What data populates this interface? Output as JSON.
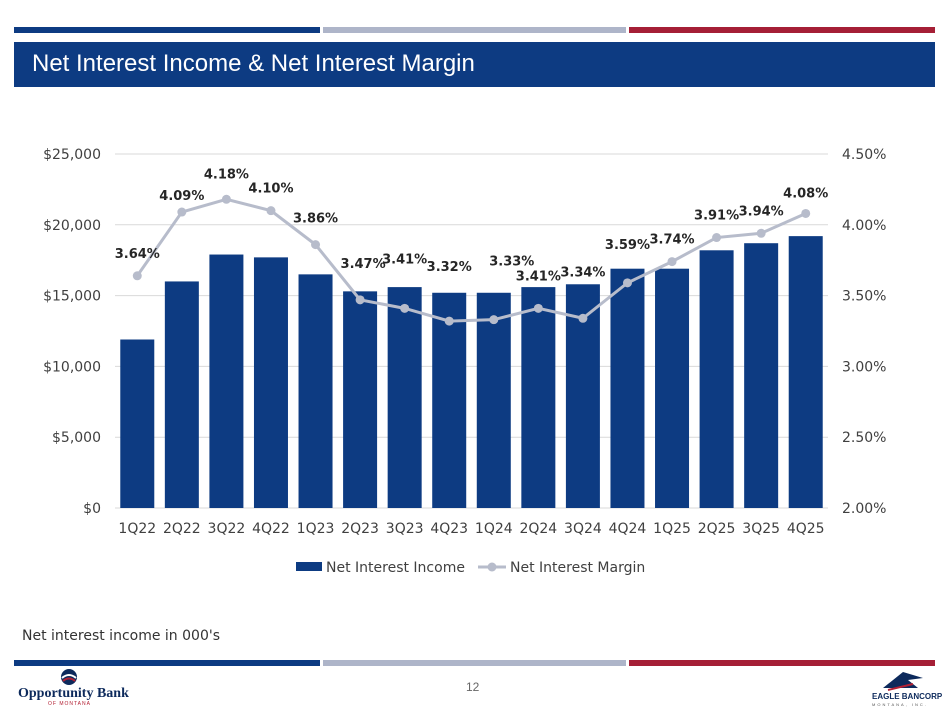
{
  "header": {
    "title": "Net Interest Income & Net Interest Margin"
  },
  "colors": {
    "navy": "#0d3b82",
    "grey": "#aeb5c9",
    "red": "#a51f36",
    "line": "#b7bccb"
  },
  "footnote": "Net interest income in 000's",
  "page_number": "12",
  "logos": {
    "left_name": "Opportunity Bank",
    "left_sub": "OF MONTANA",
    "right_name": "EAGLE BANCORP",
    "right_sub": "MONTANA, INC."
  },
  "chart_data": {
    "type": "bar",
    "categories": [
      "1Q22",
      "2Q22",
      "3Q22",
      "4Q22",
      "1Q23",
      "2Q23",
      "3Q23",
      "4Q23",
      "1Q24",
      "2Q24",
      "3Q24",
      "4Q24",
      "1Q25",
      "2Q25",
      "3Q25",
      "4Q25"
    ],
    "series": [
      {
        "name": "Net Interest Income",
        "type": "bar",
        "axis": "left",
        "values": [
          11900,
          16000,
          17900,
          17700,
          16500,
          15300,
          15600,
          15200,
          15200,
          15600,
          15800,
          16900,
          16900,
          18200,
          18700,
          19200
        ]
      },
      {
        "name": "Net Interest Margin",
        "type": "line",
        "axis": "right",
        "values": [
          3.64,
          4.09,
          4.18,
          4.1,
          3.86,
          3.47,
          3.41,
          3.32,
          3.33,
          3.41,
          3.34,
          3.59,
          3.74,
          3.91,
          3.94,
          4.08
        ],
        "labels": [
          "3.64%",
          "4.09%",
          "4.18%",
          "4.10%",
          "3.86%",
          "3.47%",
          "3.41%",
          "3.32%",
          "3.33%",
          "3.41%",
          "3.34%",
          "3.59%",
          "3.74%",
          "3.91%",
          "3.94%",
          "4.08%"
        ]
      }
    ],
    "y_left": {
      "min": 0,
      "max": 25000,
      "ticks": [
        "$0",
        "$5,000",
        "$10,000",
        "$15,000",
        "$20,000",
        "$25,000"
      ]
    },
    "y_right": {
      "min": 2.0,
      "max": 4.5,
      "ticks": [
        "2.00%",
        "2.50%",
        "3.00%",
        "3.50%",
        "4.00%",
        "4.50%"
      ]
    },
    "legend": [
      "Net Interest Income",
      "Net Interest Margin"
    ],
    "legend_position": "bottom",
    "grid": true
  }
}
